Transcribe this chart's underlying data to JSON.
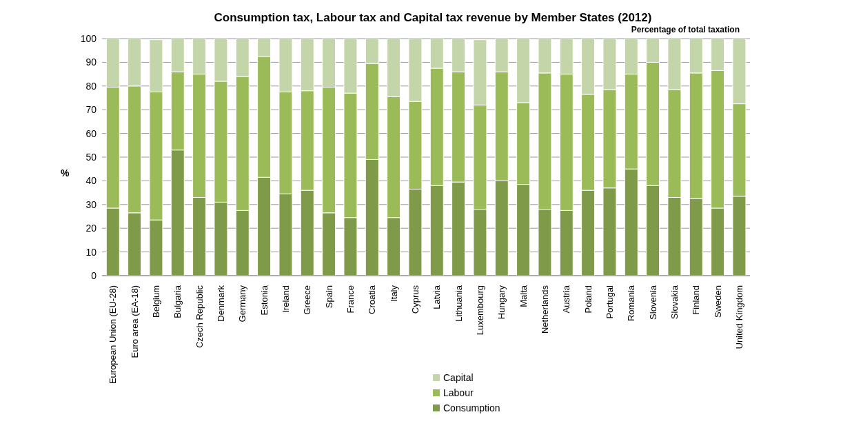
{
  "chart_data": {
    "type": "bar",
    "title": "Consumption tax, Labour tax and Capital tax revenue by Member States (2012)",
    "subtitle": "Percentage of total taxation",
    "ylabel": "%",
    "categories": [
      "European Union (EU-28)",
      "Euro area (EA-18)",
      "Belgium",
      "Bulgaria",
      "Czech Republic",
      "Denmark",
      "Germany",
      "Estonia",
      "Ireland",
      "Greece",
      "Spain",
      "France",
      "Croatia",
      "Italy",
      "Cyprus",
      "Latvia",
      "Lithuania",
      "Luxembourg",
      "Hungary",
      "Malta",
      "Netherlands",
      "Austria",
      "Poland",
      "Portugal",
      "Romania",
      "Slovenia",
      "Slovakia",
      "Finland",
      "Sweden",
      "United Kingdom"
    ],
    "stacked": true,
    "series": [
      {
        "name": "Consumption",
        "color": "#7f9a48",
        "values": [
          28.5,
          26.5,
          23.5,
          53,
          33,
          31,
          27.5,
          41.5,
          34.5,
          36,
          26.5,
          24.5,
          49,
          24.5,
          36.5,
          38,
          39.5,
          28,
          40,
          38.5,
          28,
          27.5,
          36,
          37,
          45,
          38,
          33,
          32.5,
          28.5,
          33.5
        ]
      },
      {
        "name": "Labour",
        "color": "#9bbb59",
        "values": [
          51,
          53.5,
          54,
          33,
          52,
          51,
          56.5,
          51,
          43,
          42,
          53,
          52.5,
          40.5,
          51,
          37,
          49.5,
          46.5,
          44,
          46,
          34.5,
          57.5,
          57.5,
          40.5,
          41.5,
          40,
          52,
          45.5,
          53,
          58,
          39
        ]
      },
      {
        "name": "Capital",
        "color": "#c4d6a9",
        "values": [
          20.5,
          20,
          22,
          14,
          15,
          18,
          16,
          7.5,
          22.5,
          22,
          20.5,
          23,
          10.5,
          24.5,
          26.5,
          12.5,
          14,
          27.5,
          14,
          27,
          14.5,
          15,
          23.5,
          21.5,
          15,
          10,
          21.5,
          14.5,
          13.5,
          27.5
        ]
      }
    ],
    "ylim": [
      0,
      100
    ],
    "yticks": [
      0,
      10,
      20,
      30,
      40,
      50,
      60,
      70,
      80,
      90,
      100
    ],
    "grid": "y",
    "legend": "bottom"
  }
}
